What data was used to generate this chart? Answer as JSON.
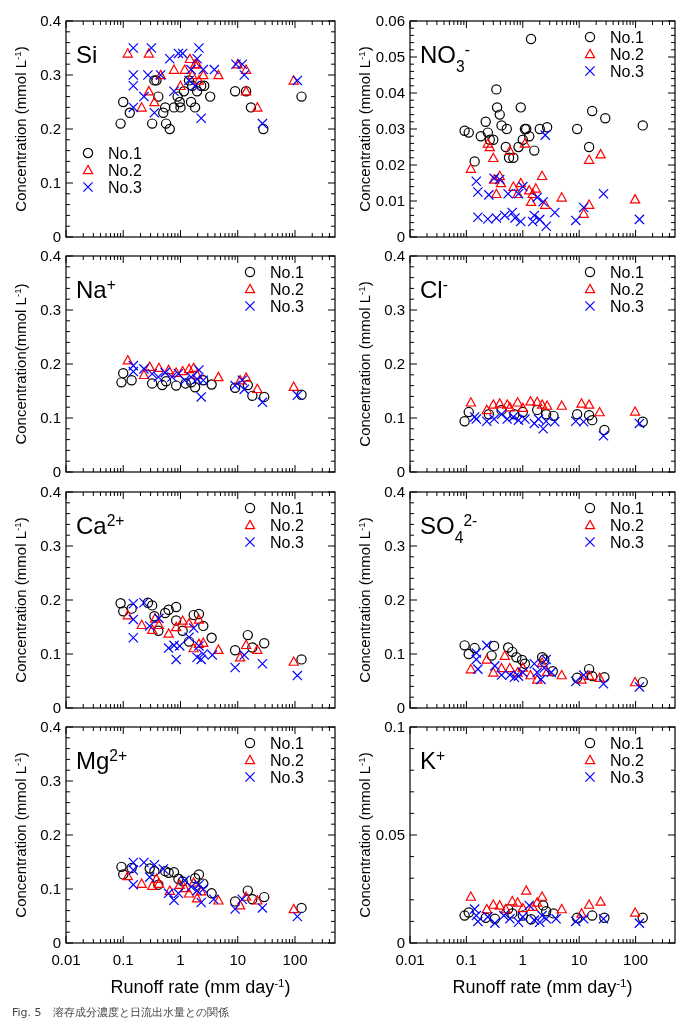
{
  "chart_data": [
    {
      "type": "scatter",
      "title": "Si",
      "ylabel": "Concentration (mmol L$^{-1}$)",
      "log": "x",
      "xlim": [
        0.01,
        500
      ],
      "xticks": [
        0.01,
        0.1,
        1,
        10,
        100
      ],
      "ylim": [
        0,
        0.4
      ],
      "yticks": [
        0,
        0.1,
        0.2,
        0.3,
        0.4
      ],
      "tick_labels": "y",
      "legend": "bottom left",
      "series": [
        {
          "name": "No.1",
          "color": "#000000",
          "marker": "circle",
          "x": [
            0.09,
            0.1,
            0.13,
            0.32,
            0.35,
            0.38,
            0.41,
            0.5,
            0.54,
            0.56,
            0.65,
            0.77,
            0.89,
            0.97,
            1.0,
            1.15,
            1.41,
            1.53,
            1.8,
            1.6,
            1.95,
            2.3,
            2.6,
            3.3,
            9.0,
            14,
            17,
            28,
            130
          ],
          "values": [
            0.21,
            0.25,
            0.23,
            0.21,
            0.29,
            0.29,
            0.26,
            0.23,
            0.24,
            0.21,
            0.2,
            0.24,
            0.26,
            0.25,
            0.24,
            0.27,
            0.29,
            0.25,
            0.24,
            0.28,
            0.27,
            0.28,
            0.28,
            0.26,
            0.27,
            0.27,
            0.24,
            0.2,
            0.26
          ]
        },
        {
          "name": "No.2",
          "color": "#ff0000",
          "marker": "triangle",
          "x": [
            0.12,
            0.28,
            0.21,
            0.28,
            0.35,
            0.45,
            0.77,
            1.0,
            1.19,
            1.46,
            1.6,
            1.8,
            1.95,
            2.1,
            2.5,
            4.6,
            10,
            14,
            14,
            22,
            95
          ],
          "values": [
            0.34,
            0.34,
            0.24,
            0.27,
            0.25,
            0.3,
            0.31,
            0.28,
            0.31,
            0.33,
            0.3,
            0.32,
            0.32,
            0.29,
            0.3,
            0.3,
            0.32,
            0.31,
            0.27,
            0.24,
            0.29
          ]
        },
        {
          "name": "No.3",
          "color": "#0000ff",
          "marker": "cross",
          "x": [
            0.15,
            0.15,
            0.15,
            0.15,
            0.23,
            0.27,
            0.31,
            0.35,
            0.45,
            0.65,
            0.77,
            0.92,
            1.09,
            1.41,
            1.53,
            1.8,
            1.95,
            2.1,
            2.3,
            2.5,
            3.9,
            9.3,
            12,
            13,
            27,
            110
          ],
          "values": [
            0.35,
            0.3,
            0.28,
            0.24,
            0.26,
            0.3,
            0.35,
            0.23,
            0.3,
            0.33,
            0.27,
            0.34,
            0.34,
            0.29,
            0.31,
            0.28,
            0.33,
            0.35,
            0.22,
            0.31,
            0.31,
            0.32,
            0.32,
            0.3,
            0.21,
            0.29
          ]
        }
      ]
    },
    {
      "type": "scatter",
      "title": "NO$_{3}$$^{-}$",
      "ylabel": "Concentration (mmol L$^{-1}$)",
      "log": "x",
      "xlim": [
        0.01,
        500
      ],
      "xticks": [
        0.01,
        0.1,
        1,
        10,
        100
      ],
      "ylim": [
        0,
        0.06
      ],
      "yticks": [
        0,
        0.01,
        0.02,
        0.03,
        0.04,
        0.05,
        0.06
      ],
      "tick_labels": "y",
      "legend": "top right",
      "series": [
        {
          "name": "No.1",
          "color": "#000000",
          "marker": "circle",
          "x": [
            0.093,
            0.11,
            0.14,
            0.18,
            0.22,
            0.24,
            0.26,
            0.3,
            0.34,
            0.35,
            0.39,
            0.42,
            0.5,
            0.52,
            0.57,
            0.68,
            0.84,
            0.92,
            1.0,
            1.09,
            1.15,
            1.3,
            1.4,
            1.6,
            2.0,
            2.7,
            9.2,
            15,
            17,
            29,
            134
          ],
          "values": [
            0.0295,
            0.029,
            0.021,
            0.028,
            0.032,
            0.029,
            0.027,
            0.027,
            0.041,
            0.036,
            0.034,
            0.031,
            0.025,
            0.03,
            0.022,
            0.022,
            0.025,
            0.036,
            0.027,
            0.03,
            0.03,
            0.028,
            0.055,
            0.024,
            0.03,
            0.0305,
            0.03,
            0.025,
            0.035,
            0.033,
            0.031
          ]
        },
        {
          "name": "No.2",
          "color": "#ff0000",
          "marker": "triangle",
          "x": [
            0.12,
            0.24,
            0.26,
            0.3,
            0.31,
            0.34,
            0.39,
            0.41,
            0.59,
            0.68,
            0.81,
            0.92,
            1.09,
            1.3,
            1.4,
            1.5,
            1.7,
            2.2,
            2.5,
            4.9,
            12,
            15,
            15,
            24,
            98
          ],
          "values": [
            0.019,
            0.026,
            0.025,
            0.022,
            0.016,
            0.012,
            0.017,
            0.015,
            0.024,
            0.014,
            0.012,
            0.015,
            0.026,
            0.013,
            0.0098,
            0.012,
            0.0135,
            0.017,
            0.009,
            0.011,
            0.0065,
            0.009,
            0.0215,
            0.023,
            0.0105
          ]
        },
        {
          "name": "No.3",
          "color": "#0000ff",
          "marker": "cross",
          "x": [
            0.15,
            0.16,
            0.16,
            0.24,
            0.25,
            0.31,
            0.34,
            0.39,
            0.48,
            0.55,
            0.65,
            0.73,
            0.84,
            0.92,
            1.0,
            1.5,
            1.6,
            1.8,
            2.0,
            2.3,
            2.5,
            2.6,
            3.7,
            8.7,
            12,
            27,
            117
          ],
          "values": [
            0.0155,
            0.0125,
            0.0055,
            0.005,
            0.0117,
            0.0163,
            0.0053,
            0.016,
            0.006,
            0.012,
            0.0068,
            0.0053,
            0.012,
            0.0043,
            0.014,
            0.0043,
            0.006,
            0.011,
            0.0049,
            0.0098,
            0.0283,
            0.003,
            0.0068,
            0.0046,
            0.0082,
            0.012,
            0.0049
          ]
        }
      ]
    },
    {
      "type": "scatter",
      "title": "Na$^{+}$",
      "ylabel": "Concentration(mmol L$^{-1}$)",
      "log": "x",
      "xlim": [
        0.01,
        500
      ],
      "xticks": [
        0.01,
        0.1,
        1,
        10,
        100
      ],
      "ylim": [
        0,
        0.4
      ],
      "yticks": [
        0,
        0.1,
        0.2,
        0.3,
        0.4
      ],
      "tick_labels": "y",
      "legend": "top right",
      "series": [
        {
          "name": "No.1",
          "color": "#000000",
          "marker": "circle",
          "x": [
            0.093,
            0.1,
            0.14,
            0.32,
            0.48,
            0.56,
            0.84,
            1.23,
            1.54,
            1.8,
            2.5,
            3.5,
            9.0,
            15,
            18,
            29,
            130
          ],
          "values": [
            0.166,
            0.183,
            0.17,
            0.164,
            0.161,
            0.168,
            0.16,
            0.164,
            0.166,
            0.157,
            0.17,
            0.162,
            0.156,
            0.161,
            0.141,
            0.139,
            0.143
          ]
        },
        {
          "name": "No.2",
          "color": "#ff0000",
          "marker": "triangle",
          "x": [
            0.12,
            0.23,
            0.29,
            0.42,
            0.62,
            0.84,
            1.09,
            1.41,
            1.7,
            1.95,
            4.6,
            11,
            14,
            22,
            95
          ],
          "values": [
            0.207,
            0.18,
            0.195,
            0.193,
            0.189,
            0.184,
            0.187,
            0.191,
            0.193,
            0.18,
            0.176,
            0.17,
            0.175,
            0.154,
            0.158
          ]
        },
        {
          "name": "No.3",
          "color": "#0000ff",
          "marker": "cross",
          "x": [
            0.15,
            0.15,
            0.23,
            0.32,
            0.41,
            0.54,
            0.71,
            0.92,
            1.19,
            1.54,
            1.95,
            2.1,
            2.3,
            2.5,
            9.0,
            12,
            13,
            27,
            110
          ],
          "values": [
            0.197,
            0.186,
            0.191,
            0.182,
            0.176,
            0.184,
            0.176,
            0.182,
            0.17,
            0.176,
            0.172,
            0.189,
            0.139,
            0.17,
            0.16,
            0.17,
            0.153,
            0.129,
            0.142
          ]
        }
      ]
    },
    {
      "type": "scatter",
      "title": "Cl$^{-}$",
      "ylabel": "Concentration (mmol L$^{-1}$)",
      "log": "x",
      "xlim": [
        0.01,
        500
      ],
      "xticks": [
        0.01,
        0.1,
        1,
        10,
        100
      ],
      "ylim": [
        0,
        0.4
      ],
      "yticks": [
        0,
        0.1,
        0.2,
        0.3,
        0.4
      ],
      "tick_labels": "y",
      "legend": "top right",
      "series": [
        {
          "name": "No.1",
          "color": "#000000",
          "marker": "circle",
          "x": [
            0.093,
            0.11,
            0.25,
            0.42,
            0.71,
            1.0,
            1.8,
            2.6,
            3.5,
            9.2,
            15,
            17,
            28,
            134
          ],
          "values": [
            0.094,
            0.111,
            0.107,
            0.115,
            0.107,
            0.111,
            0.115,
            0.107,
            0.104,
            0.107,
            0.105,
            0.096,
            0.078,
            0.093
          ]
        },
        {
          "name": "No.2",
          "color": "#ff0000",
          "marker": "triangle",
          "x": [
            0.12,
            0.23,
            0.3,
            0.39,
            0.53,
            0.59,
            0.81,
            1.0,
            1.37,
            1.8,
            2.2,
            2.7,
            4.9,
            11,
            15,
            23,
            98
          ],
          "values": [
            0.129,
            0.115,
            0.125,
            0.127,
            0.125,
            0.12,
            0.129,
            0.119,
            0.131,
            0.13,
            0.125,
            0.123,
            0.123,
            0.127,
            0.125,
            0.111,
            0.112
          ]
        },
        {
          "name": "No.3",
          "color": "#0000ff",
          "marker": "cross",
          "x": [
            0.14,
            0.15,
            0.23,
            0.31,
            0.42,
            0.53,
            0.68,
            0.84,
            1.09,
            1.6,
            1.9,
            2.3,
            2.6,
            3.7,
            8.7,
            12,
            27,
            117
          ],
          "values": [
            0.102,
            0.098,
            0.094,
            0.098,
            0.107,
            0.098,
            0.102,
            0.096,
            0.098,
            0.09,
            0.098,
            0.08,
            0.094,
            0.093,
            0.094,
            0.093,
            0.067,
            0.09
          ]
        }
      ]
    },
    {
      "type": "scatter",
      "title": "Ca$^{2+}$",
      "ylabel": "Concentration (mmol L$^{-1}$)",
      "log": "x",
      "xlim": [
        0.01,
        500
      ],
      "xticks": [
        0.01,
        0.1,
        1,
        10,
        100
      ],
      "ylim": [
        0,
        0.4
      ],
      "yticks": [
        0,
        0.1,
        0.2,
        0.3,
        0.4
      ],
      "tick_labels": "y",
      "legend": "top right",
      "series": [
        {
          "name": "No.1",
          "color": "#000000",
          "marker": "circle",
          "x": [
            0.09,
            0.1,
            0.14,
            0.27,
            0.32,
            0.35,
            0.41,
            0.54,
            0.62,
            0.84,
            0.84,
            1.09,
            1.41,
            1.7,
            2.1,
            2.5,
            3.5,
            9.0,
            15,
            18,
            29,
            130
          ],
          "values": [
            0.194,
            0.179,
            0.184,
            0.195,
            0.19,
            0.17,
            0.143,
            0.176,
            0.182,
            0.187,
            0.162,
            0.143,
            0.123,
            0.172,
            0.174,
            0.152,
            0.13,
            0.107,
            0.135,
            0.112,
            0.12,
            0.09
          ]
        },
        {
          "name": "No.2",
          "color": "#ff0000",
          "marker": "triangle",
          "x": [
            0.12,
            0.21,
            0.32,
            0.36,
            0.42,
            0.62,
            0.84,
            1.09,
            1.41,
            1.7,
            2.1,
            2.1,
            2.5,
            4.6,
            11,
            14,
            22,
            95
          ],
          "values": [
            0.172,
            0.154,
            0.145,
            0.166,
            0.154,
            0.138,
            0.15,
            0.162,
            0.157,
            0.111,
            0.164,
            0.119,
            0.121,
            0.108,
            0.094,
            0.117,
            0.108,
            0.086
          ]
        },
        {
          "name": "No.3",
          "color": "#0000ff",
          "marker": "cross",
          "x": [
            0.15,
            0.15,
            0.15,
            0.23,
            0.29,
            0.42,
            0.62,
            0.77,
            0.84,
            0.97,
            1.41,
            1.7,
            1.95,
            2.1,
            2.3,
            2.5,
            3.6,
            9.0,
            13,
            27,
            110
          ],
          "values": [
            0.193,
            0.164,
            0.13,
            0.195,
            0.152,
            0.166,
            0.111,
            0.116,
            0.09,
            0.115,
            0.131,
            0.148,
            0.094,
            0.115,
            0.09,
            0.1,
            0.098,
            0.075,
            0.098,
            0.082,
            0.06
          ]
        }
      ]
    },
    {
      "type": "scatter",
      "title": "SO$_{4}$$^{2-}$",
      "ylabel": "Concentration (mmol L$^{-1}$)",
      "log": "x",
      "xlim": [
        0.01,
        500
      ],
      "xticks": [
        0.01,
        0.1,
        1,
        10,
        100
      ],
      "ylim": [
        0,
        0.4
      ],
      "yticks": [
        0,
        0.1,
        0.2,
        0.3,
        0.4
      ],
      "tick_labels": "y",
      "legend": "top right",
      "series": [
        {
          "name": "No.1",
          "color": "#000000",
          "marker": "circle",
          "x": [
            0.093,
            0.11,
            0.14,
            0.31,
            0.28,
            0.55,
            0.65,
            0.77,
            0.97,
            1.09,
            2.2,
            2.4,
            3.4,
            9.2,
            15,
            17,
            28,
            134
          ],
          "values": [
            0.116,
            0.1,
            0.111,
            0.115,
            0.097,
            0.112,
            0.104,
            0.094,
            0.089,
            0.082,
            0.094,
            0.09,
            0.068,
            0.056,
            0.072,
            0.059,
            0.057,
            0.048
          ]
        },
        {
          "name": "No.2",
          "color": "#ff0000",
          "marker": "triangle",
          "x": [
            0.12,
            0.23,
            0.3,
            0.42,
            0.48,
            0.59,
            0.81,
            1.0,
            1.37,
            1.8,
            2.2,
            2.7,
            4.9,
            11,
            15,
            23,
            98
          ],
          "values": [
            0.072,
            0.09,
            0.066,
            0.074,
            0.097,
            0.074,
            0.066,
            0.075,
            0.061,
            0.053,
            0.084,
            0.067,
            0.061,
            0.053,
            0.06,
            0.056,
            0.048
          ]
        },
        {
          "name": "No.3",
          "color": "#0000ff",
          "marker": "cross",
          "x": [
            0.15,
            0.15,
            0.16,
            0.23,
            0.32,
            0.42,
            0.59,
            0.71,
            0.84,
            1.0,
            1.6,
            1.8,
            2.1,
            2.4,
            2.6,
            3.2,
            8.7,
            12,
            27,
            117
          ],
          "values": [
            0.102,
            0.09,
            0.072,
            0.116,
            0.078,
            0.061,
            0.061,
            0.057,
            0.059,
            0.066,
            0.082,
            0.066,
            0.053,
            0.074,
            0.09,
            0.066,
            0.049,
            0.061,
            0.045,
            0.039
          ]
        }
      ]
    },
    {
      "type": "scatter",
      "title": "Mg$^{2+}$",
      "xlabel": "Runoff rate (mm day$^{-1}$)",
      "ylabel": "Concentration (mmol L$^{-1}$)",
      "log": "x",
      "xlim": [
        0.01,
        500
      ],
      "xticks": [
        0.01,
        0.1,
        1,
        10,
        100
      ],
      "ylim": [
        0,
        0.4
      ],
      "yticks": [
        0,
        0.1,
        0.2,
        0.3,
        0.4
      ],
      "legend": "top right",
      "annotations": [
        "Fig. 5　溶存成分濃度と日流出水量との関係"
      ],
      "series": [
        {
          "name": "No.1",
          "color": "#000000",
          "marker": "circle",
          "x": [
            0.093,
            0.1,
            0.14,
            0.29,
            0.35,
            0.41,
            0.54,
            0.62,
            0.77,
            0.92,
            1.09,
            1.8,
            2.1,
            2.5,
            3.5,
            9.0,
            15,
            18,
            29,
            130
          ],
          "values": [
            0.141,
            0.127,
            0.139,
            0.138,
            0.133,
            0.108,
            0.133,
            0.13,
            0.131,
            0.119,
            0.114,
            0.12,
            0.127,
            0.11,
            0.092,
            0.077,
            0.097,
            0.081,
            0.085,
            0.065
          ]
        },
        {
          "name": "No.2",
          "color": "#ff0000",
          "marker": "triangle",
          "x": [
            0.12,
            0.21,
            0.32,
            0.38,
            0.42,
            0.65,
            0.97,
            1.19,
            1.41,
            1.7,
            1.95,
            2.3,
            4.6,
            11,
            14,
            22,
            95
          ],
          "values": [
            0.124,
            0.11,
            0.106,
            0.119,
            0.11,
            0.097,
            0.108,
            0.102,
            0.092,
            0.112,
            0.083,
            0.096,
            0.079,
            0.07,
            0.086,
            0.079,
            0.063
          ]
        },
        {
          "name": "No.3",
          "color": "#0000ff",
          "marker": "cross",
          "x": [
            0.15,
            0.15,
            0.15,
            0.23,
            0.29,
            0.35,
            0.5,
            0.62,
            0.77,
            0.92,
            1.19,
            1.54,
            1.95,
            2.1,
            2.3,
            2.5,
            3.8,
            9.0,
            12,
            27,
            110
          ],
          "values": [
            0.149,
            0.135,
            0.108,
            0.149,
            0.122,
            0.145,
            0.137,
            0.092,
            0.079,
            0.092,
            0.116,
            0.104,
            0.097,
            0.108,
            0.075,
            0.1,
            0.081,
            0.063,
            0.081,
            0.065,
            0.049
          ]
        }
      ]
    },
    {
      "type": "scatter",
      "title": "K$^{+}$",
      "xlabel": "Runoff rate (mm day$^{-1}$)",
      "ylabel": "Concentration (mmol L$^{-1}$)",
      "log": "x",
      "xlim": [
        0.01,
        500
      ],
      "xticks": [
        0.01,
        0.1,
        1,
        10,
        100
      ],
      "ylim": [
        0,
        0.1
      ],
      "yticks": [
        0,
        0.05,
        0.1
      ],
      "legend": "top right",
      "series": [
        {
          "name": "No.1",
          "color": "#000000",
          "marker": "circle",
          "x": [
            0.093,
            0.11,
            0.22,
            0.32,
            0.55,
            0.65,
            1.0,
            1.4,
            2.3,
            2.6,
            3.5,
            9.2,
            17,
            28,
            134
          ],
          "values": [
            0.0127,
            0.0141,
            0.0117,
            0.0112,
            0.0157,
            0.0137,
            0.0127,
            0.011,
            0.0174,
            0.0147,
            0.0137,
            0.0117,
            0.0127,
            0.0117,
            0.0117
          ]
        },
        {
          "name": "No.2",
          "color": "#ff0000",
          "marker": "triangle",
          "x": [
            0.12,
            0.23,
            0.3,
            0.39,
            0.5,
            0.65,
            0.81,
            1.0,
            1.15,
            1.5,
            1.8,
            2.2,
            4.9,
            11,
            15,
            24,
            98
          ],
          "values": [
            0.0215,
            0.0157,
            0.0178,
            0.0174,
            0.0157,
            0.0194,
            0.0188,
            0.0162,
            0.0243,
            0.0168,
            0.0188,
            0.0215,
            0.0157,
            0.0137,
            0.0178,
            0.0192,
            0.0141
          ]
        },
        {
          "name": "No.3",
          "color": "#0000ff",
          "marker": "cross",
          "x": [
            0.14,
            0.15,
            0.16,
            0.24,
            0.32,
            0.46,
            0.59,
            0.84,
            1.0,
            1.3,
            1.6,
            2.0,
            2.2,
            2.6,
            3.9,
            8.7,
            12,
            27,
            117
          ],
          "values": [
            0.0157,
            0.0127,
            0.01,
            0.0121,
            0.0092,
            0.0127,
            0.0112,
            0.0096,
            0.0121,
            0.0174,
            0.0106,
            0.0096,
            0.0127,
            0.0112,
            0.0112,
            0.01,
            0.0112,
            0.0112,
            0.0092
          ]
        }
      ]
    }
  ]
}
